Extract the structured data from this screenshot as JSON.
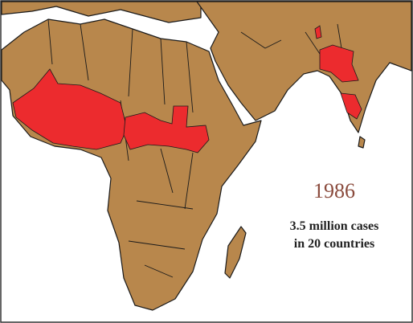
{
  "year": "1986",
  "caption": [
    "3.5 million cases",
    "in 20 countries"
  ]
}
